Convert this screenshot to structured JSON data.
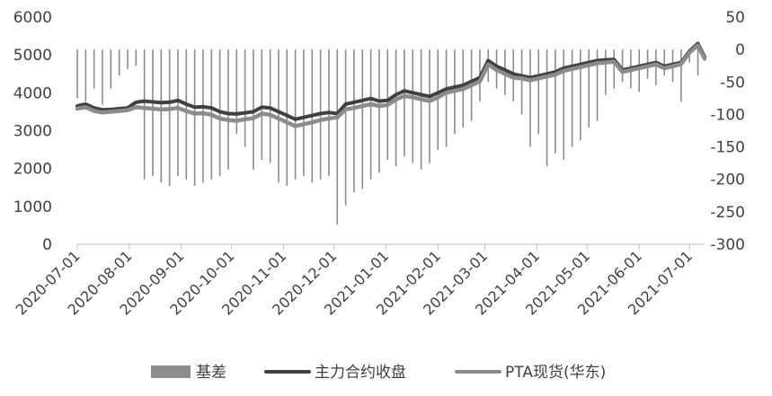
{
  "chart_data": {
    "type": "line",
    "title": "",
    "xlabel": "",
    "ylabel": "",
    "y2label": "",
    "x_ticks": [
      "2020-07-01",
      "2020-08-01",
      "2020-09-01",
      "2020-10-01",
      "2020-11-01",
      "2020-12-01",
      "2021-01-01",
      "2021-02-01",
      "2021-03-01",
      "2021-04-01",
      "2021-05-01",
      "2021-06-01",
      "2021-07-01"
    ],
    "x_range": [
      "2020-07-01",
      "2021-07-10"
    ],
    "y_left": {
      "range": [
        0,
        6000
      ],
      "ticks": [
        0,
        1000,
        2000,
        3000,
        4000,
        5000,
        6000
      ]
    },
    "y_right": {
      "range": [
        -300,
        50
      ],
      "ticks": [
        50,
        0,
        -50,
        -100,
        -150,
        -200,
        -250,
        -300
      ]
    },
    "grid": false,
    "legend_position": "bottom",
    "series": [
      {
        "name": "基差",
        "axis": "right",
        "render": "bar",
        "color": "#8c8c8c",
        "x": [
          "2020-07-01",
          "2020-07-06",
          "2020-07-11",
          "2020-07-16",
          "2020-07-21",
          "2020-07-26",
          "2020-07-31",
          "2020-08-05",
          "2020-08-10",
          "2020-08-15",
          "2020-08-20",
          "2020-08-25",
          "2020-08-30",
          "2020-09-04",
          "2020-09-09",
          "2020-09-14",
          "2020-09-19",
          "2020-09-24",
          "2020-09-29",
          "2020-10-04",
          "2020-10-09",
          "2020-10-14",
          "2020-10-19",
          "2020-10-24",
          "2020-10-29",
          "2020-11-03",
          "2020-11-08",
          "2020-11-13",
          "2020-11-18",
          "2020-11-23",
          "2020-11-28",
          "2020-12-03",
          "2020-12-08",
          "2020-12-13",
          "2020-12-18",
          "2020-12-23",
          "2020-12-28",
          "2021-01-02",
          "2021-01-07",
          "2021-01-12",
          "2021-01-17",
          "2021-01-22",
          "2021-01-27",
          "2021-02-01",
          "2021-02-06",
          "2021-02-11",
          "2021-02-16",
          "2021-02-21",
          "2021-02-26",
          "2021-03-03",
          "2021-03-08",
          "2021-03-13",
          "2021-03-18",
          "2021-03-23",
          "2021-03-28",
          "2021-04-02",
          "2021-04-07",
          "2021-04-12",
          "2021-04-17",
          "2021-04-22",
          "2021-04-27",
          "2021-05-02",
          "2021-05-07",
          "2021-05-12",
          "2021-05-17",
          "2021-05-22",
          "2021-05-27",
          "2021-06-01",
          "2021-06-06",
          "2021-06-11",
          "2021-06-16",
          "2021-06-21",
          "2021-06-26",
          "2021-07-01",
          "2021-07-06"
        ],
        "values": [
          -75,
          -80,
          -60,
          -85,
          -60,
          -40,
          -30,
          -25,
          -200,
          -195,
          -205,
          -210,
          -195,
          -200,
          -210,
          -205,
          -200,
          -195,
          -185,
          -130,
          -150,
          -185,
          -170,
          -175,
          -205,
          -210,
          -200,
          -195,
          -205,
          -200,
          -195,
          -270,
          -240,
          -220,
          -215,
          -200,
          -190,
          -170,
          -180,
          -165,
          -175,
          -185,
          -175,
          -155,
          -150,
          -130,
          -120,
          -110,
          -80,
          -50,
          -60,
          -70,
          -80,
          -100,
          -150,
          -130,
          -180,
          -160,
          -170,
          -150,
          -140,
          -120,
          -110,
          -70,
          -60,
          -50,
          -60,
          -65,
          -45,
          -55,
          -40,
          -50,
          -80,
          -20,
          -40
        ]
      },
      {
        "name": "主力合约收盘",
        "axis": "left",
        "render": "line",
        "color": "#404040",
        "x": [
          "2020-07-01",
          "2020-07-06",
          "2020-07-11",
          "2020-07-16",
          "2020-07-21",
          "2020-07-26",
          "2020-07-31",
          "2020-08-05",
          "2020-08-10",
          "2020-08-15",
          "2020-08-20",
          "2020-08-25",
          "2020-08-30",
          "2020-09-04",
          "2020-09-09",
          "2020-09-14",
          "2020-09-19",
          "2020-09-24",
          "2020-09-29",
          "2020-10-04",
          "2020-10-09",
          "2020-10-14",
          "2020-10-19",
          "2020-10-24",
          "2020-10-29",
          "2020-11-03",
          "2020-11-08",
          "2020-11-13",
          "2020-11-18",
          "2020-11-23",
          "2020-11-28",
          "2020-12-03",
          "2020-12-08",
          "2020-12-13",
          "2020-12-18",
          "2020-12-23",
          "2020-12-28",
          "2021-01-02",
          "2021-01-07",
          "2021-01-12",
          "2021-01-17",
          "2021-01-22",
          "2021-01-27",
          "2021-02-01",
          "2021-02-06",
          "2021-02-11",
          "2021-02-16",
          "2021-02-21",
          "2021-02-26",
          "2021-03-03",
          "2021-03-08",
          "2021-03-13",
          "2021-03-18",
          "2021-03-23",
          "2021-03-28",
          "2021-04-02",
          "2021-04-07",
          "2021-04-12",
          "2021-04-17",
          "2021-04-22",
          "2021-04-27",
          "2021-05-02",
          "2021-05-07",
          "2021-05-12",
          "2021-05-17",
          "2021-05-22",
          "2021-05-27",
          "2021-06-01",
          "2021-06-06",
          "2021-06-11",
          "2021-06-16",
          "2021-06-21",
          "2021-06-26",
          "2021-07-01",
          "2021-07-06",
          "2021-07-10"
        ],
        "values": [
          3650,
          3700,
          3600,
          3550,
          3560,
          3580,
          3600,
          3750,
          3780,
          3760,
          3740,
          3750,
          3800,
          3700,
          3620,
          3630,
          3600,
          3500,
          3450,
          3440,
          3470,
          3500,
          3620,
          3600,
          3500,
          3400,
          3300,
          3350,
          3400,
          3450,
          3480,
          3450,
          3700,
          3750,
          3800,
          3850,
          3780,
          3800,
          3950,
          4050,
          4000,
          3950,
          3900,
          4000,
          4100,
          4150,
          4200,
          4300,
          4400,
          4850,
          4700,
          4600,
          4500,
          4450,
          4400,
          4450,
          4500,
          4550,
          4650,
          4700,
          4750,
          4800,
          4850,
          4870,
          4880,
          4600,
          4650,
          4700,
          4750,
          4800,
          4700,
          4750,
          4800,
          5100,
          5300,
          4950
        ]
      },
      {
        "name": "PTA现货(华东)",
        "axis": "left",
        "render": "line",
        "color": "#8c8c8c",
        "x": [
          "2020-07-01",
          "2020-07-06",
          "2020-07-11",
          "2020-07-16",
          "2020-07-21",
          "2020-07-26",
          "2020-07-31",
          "2020-08-05",
          "2020-08-10",
          "2020-08-15",
          "2020-08-20",
          "2020-08-25",
          "2020-08-30",
          "2020-09-04",
          "2020-09-09",
          "2020-09-14",
          "2020-09-19",
          "2020-09-24",
          "2020-09-29",
          "2020-10-04",
          "2020-10-09",
          "2020-10-14",
          "2020-10-19",
          "2020-10-24",
          "2020-10-29",
          "2020-11-03",
          "2020-11-08",
          "2020-11-13",
          "2020-11-18",
          "2020-11-23",
          "2020-11-28",
          "2020-12-03",
          "2020-12-08",
          "2020-12-13",
          "2020-12-18",
          "2020-12-23",
          "2020-12-28",
          "2021-01-02",
          "2021-01-07",
          "2021-01-12",
          "2021-01-17",
          "2021-01-22",
          "2021-01-27",
          "2021-02-01",
          "2021-02-06",
          "2021-02-11",
          "2021-02-16",
          "2021-02-21",
          "2021-02-26",
          "2021-03-03",
          "2021-03-08",
          "2021-03-13",
          "2021-03-18",
          "2021-03-23",
          "2021-03-28",
          "2021-04-02",
          "2021-04-07",
          "2021-04-12",
          "2021-04-17",
          "2021-04-22",
          "2021-04-27",
          "2021-05-02",
          "2021-05-07",
          "2021-05-12",
          "2021-05-17",
          "2021-05-22",
          "2021-05-27",
          "2021-06-01",
          "2021-06-06",
          "2021-06-11",
          "2021-06-16",
          "2021-06-21",
          "2021-06-26",
          "2021-07-01",
          "2021-07-06",
          "2021-07-10"
        ],
        "values": [
          3580,
          3620,
          3520,
          3480,
          3500,
          3520,
          3540,
          3620,
          3600,
          3580,
          3560,
          3570,
          3600,
          3520,
          3450,
          3460,
          3420,
          3320,
          3280,
          3260,
          3300,
          3330,
          3450,
          3420,
          3320,
          3220,
          3120,
          3170,
          3220,
          3280,
          3320,
          3350,
          3560,
          3600,
          3650,
          3700,
          3650,
          3680,
          3820,
          3920,
          3880,
          3830,
          3780,
          3880,
          4000,
          4050,
          4100,
          4200,
          4300,
          4750,
          4600,
          4500,
          4400,
          4380,
          4330,
          4380,
          4430,
          4480,
          4580,
          4630,
          4680,
          4730,
          4780,
          4800,
          4820,
          4550,
          4600,
          4650,
          4700,
          4750,
          4650,
          4700,
          4760,
          5060,
          5250,
          4900
        ]
      }
    ]
  }
}
